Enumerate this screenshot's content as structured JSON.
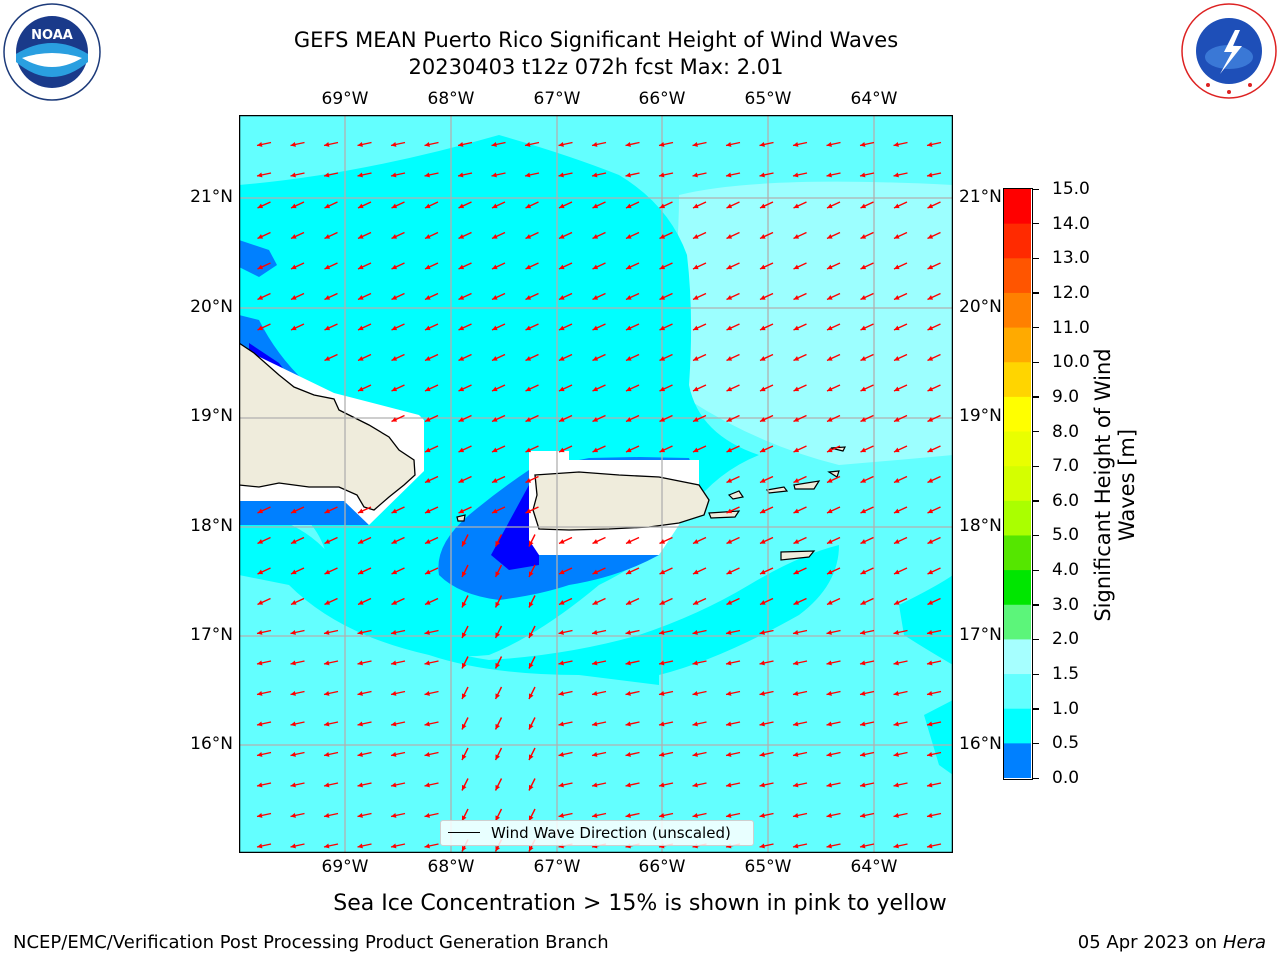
{
  "title": {
    "line1": "GEFS MEAN Puerto Rico Significant Height of Wind Waves",
    "line2": "20230403 t12z 072h fcst   Max: 2.01"
  },
  "logos": {
    "left_name": "NOAA",
    "left_ring_text": "NATIONAL OCEANIC AND ATMOSPHERIC ADMINISTRATION · U.S. DEPARTMENT OF COMMERCE",
    "right_ring_text": "NATIONAL WEATHER SERVICE"
  },
  "map": {
    "lon_labels": [
      "69°W",
      "68°W",
      "67°W",
      "66°W",
      "65°W",
      "64°W"
    ],
    "lat_labels": [
      "21°N",
      "20°N",
      "19°N",
      "18°N",
      "17°N",
      "16°N"
    ],
    "colors": {
      "ocean_base": "#63ffff",
      "ocean_light": "#9cffff",
      "ocean_mid": "#00ffff",
      "ocean_dark": "#0080ff",
      "ocean_deep": "#0000ff",
      "land": "#efecdc",
      "arrow": "#ff0000",
      "grid": "#b0b0b0"
    },
    "legend_text": "Wind Wave Direction (unscaled)"
  },
  "colorbar": {
    "ticks": [
      "15.0",
      "14.0",
      "13.0",
      "12.0",
      "11.0",
      "10.0",
      "9.0",
      "8.0",
      "7.0",
      "6.0",
      "5.0",
      "4.0",
      "3.0",
      "2.0",
      "1.5",
      "1.0",
      "0.5",
      "0.0"
    ],
    "colors": [
      "#ff0000",
      "#ff2a00",
      "#ff5500",
      "#ff8000",
      "#ffaa00",
      "#ffd500",
      "#ffff00",
      "#e9ff00",
      "#d4ff00",
      "#aaff00",
      "#55e600",
      "#00e600",
      "#5cf57a",
      "#a6ffff",
      "#63ffff",
      "#00ffff",
      "#0080ff",
      "#0000ff"
    ],
    "label": "Significant Height of Wind Waves [m]"
  },
  "subtitle": "Sea Ice Concentration > 15% is shown in pink to yellow",
  "footer": {
    "left": "NCEP/EMC/Verification Post Processing Product Generation Branch",
    "right_date": "05 Apr 2023 on ",
    "right_host": "Hera"
  }
}
